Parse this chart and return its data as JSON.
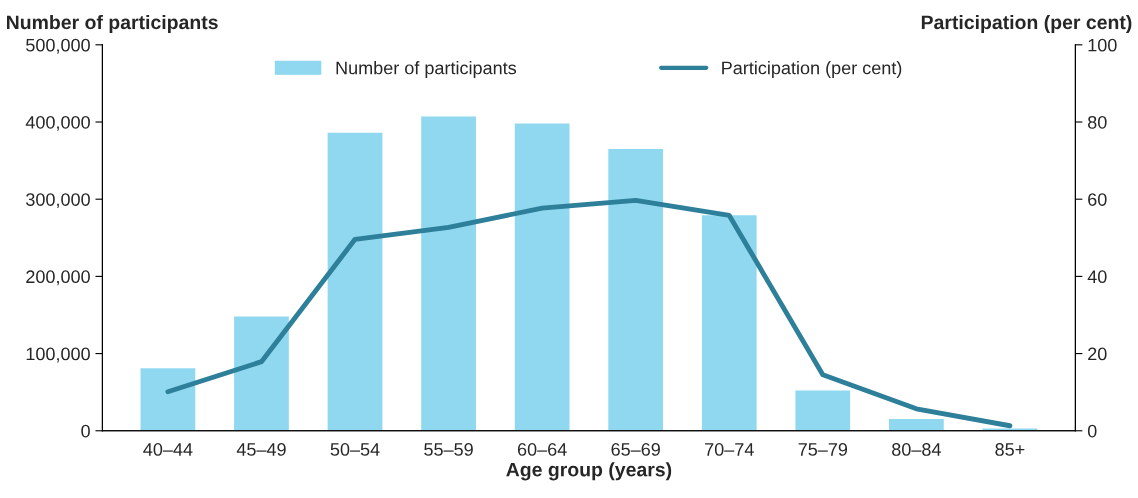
{
  "chart_data": {
    "type": "bar",
    "xlabel": "Age group (years)",
    "ylabel": "Number of participants",
    "y2label": "Participation (per cent)",
    "categories": [
      "40–44",
      "45–49",
      "50–54",
      "55–59",
      "60–64",
      "65–69",
      "70–74",
      "75–79",
      "80–84",
      "85+"
    ],
    "series": [
      {
        "name": "Number of participants",
        "color": "#8fd8f0",
        "values": [
          82000,
          149000,
          387000,
          408000,
          399000,
          366000,
          280000,
          53000,
          16000,
          4000
        ]
      },
      {
        "name": "Participation (per cent)",
        "type": "line",
        "axis": "y2",
        "color": "#2e7f99",
        "values": [
          10.1,
          17.9,
          49.6,
          52.7,
          57.7,
          59.7,
          55.8,
          14.5,
          5.7,
          1.3
        ]
      }
    ],
    "ylim": [
      0,
      500000
    ],
    "yticks": [
      {
        "value": 0,
        "label": "0"
      },
      {
        "value": 100000,
        "label": "100,000"
      },
      {
        "value": 200000,
        "label": "200,000"
      },
      {
        "value": 300000,
        "label": "300,000"
      },
      {
        "value": 400000,
        "label": "400,000"
      },
      {
        "value": 500000,
        "label": "500,000"
      }
    ],
    "y2lim": [
      0,
      100
    ],
    "y2ticks": [
      0,
      20,
      40,
      60,
      80,
      100
    ],
    "legend": "top",
    "grid": false
  }
}
